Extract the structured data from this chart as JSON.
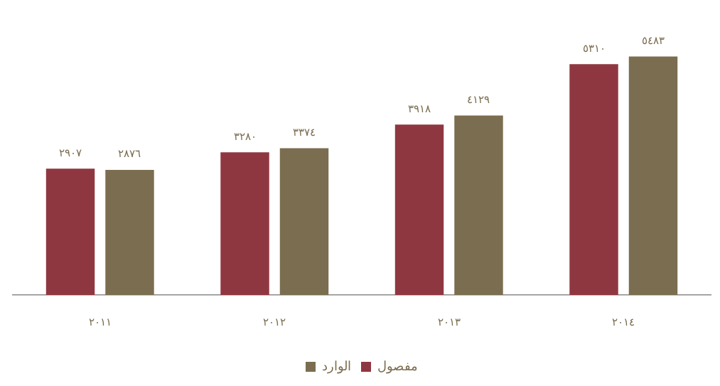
{
  "chart_data": {
    "type": "bar",
    "categories": [
      "٢٠١١",
      "٢٠١٢",
      "٢٠١٣",
      "٢٠١٤"
    ],
    "series": [
      {
        "name": "مفصول",
        "color": "#8f3741",
        "values": [
          2907,
          3280,
          3918,
          5310
        ],
        "value_labels": [
          "٢٩٠٧",
          "٣٢٨٠",
          "٣٩١٨",
          "٥٣١٠"
        ]
      },
      {
        "name": "الوارد",
        "color": "#7b6d4f",
        "values": [
          2876,
          3374,
          4129,
          5483
        ],
        "value_labels": [
          "٢٨٧٦",
          "٣٣٧٤",
          "٤١٢٩",
          "٥٤٨٣"
        ]
      }
    ],
    "grid": false,
    "legend": "bottom"
  }
}
